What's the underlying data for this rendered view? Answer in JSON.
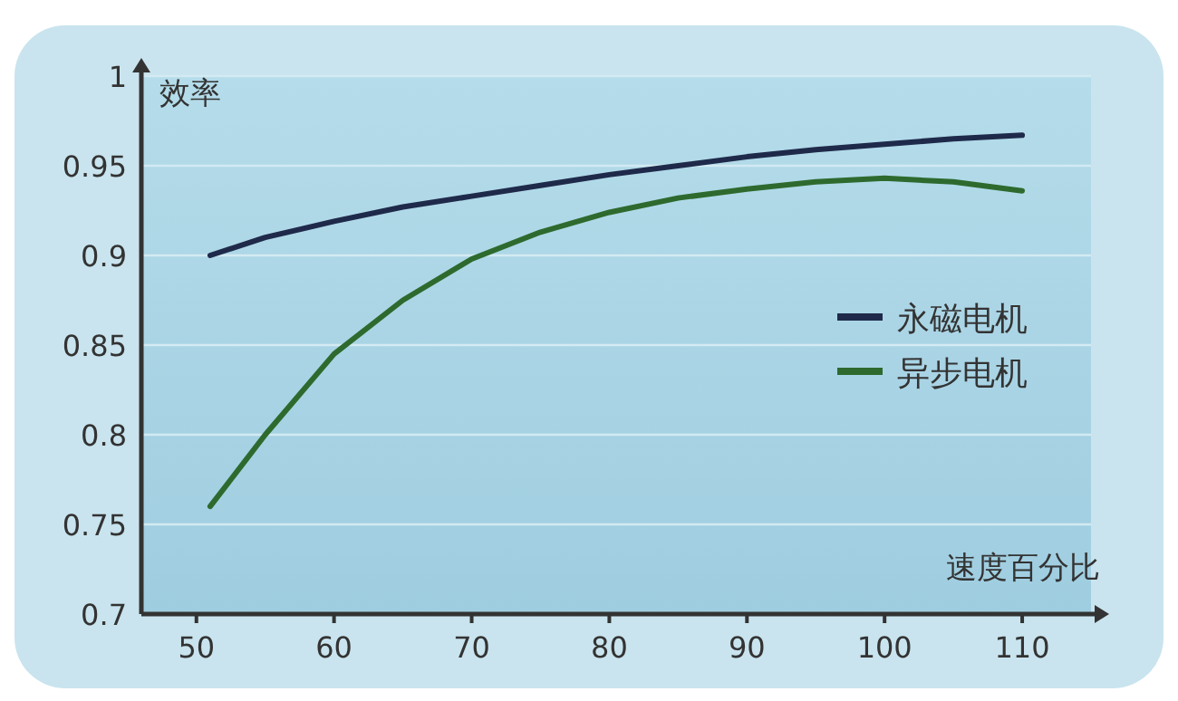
{
  "chart_data": {
    "type": "line",
    "xlabel": "速度百分比",
    "ylabel": "效率",
    "xlim": [
      46,
      115
    ],
    "ylim": [
      0.7,
      1
    ],
    "xticks": [
      50,
      60,
      70,
      80,
      90,
      100,
      110
    ],
    "yticks": [
      0.7,
      0.75,
      0.8,
      0.85,
      0.9,
      0.95,
      1
    ],
    "grid": "y",
    "legend": "right",
    "marker": "none",
    "line_style": "solid",
    "series": [
      {
        "name": "永磁电机",
        "color": "#1f2a4a",
        "x": [
          51,
          55,
          60,
          65,
          70,
          75,
          80,
          85,
          90,
          95,
          100,
          105,
          110
        ],
        "values": [
          0.9,
          0.91,
          0.919,
          0.927,
          0.933,
          0.939,
          0.945,
          0.95,
          0.955,
          0.959,
          0.962,
          0.965,
          0.967
        ]
      },
      {
        "name": "异步电机",
        "color": "#2e6a2e",
        "x": [
          51,
          55,
          60,
          65,
          70,
          75,
          80,
          85,
          90,
          95,
          100,
          105,
          110
        ],
        "values": [
          0.76,
          0.8,
          0.845,
          0.875,
          0.898,
          0.913,
          0.924,
          0.932,
          0.937,
          0.941,
          0.943,
          0.941,
          0.936
        ]
      }
    ]
  }
}
